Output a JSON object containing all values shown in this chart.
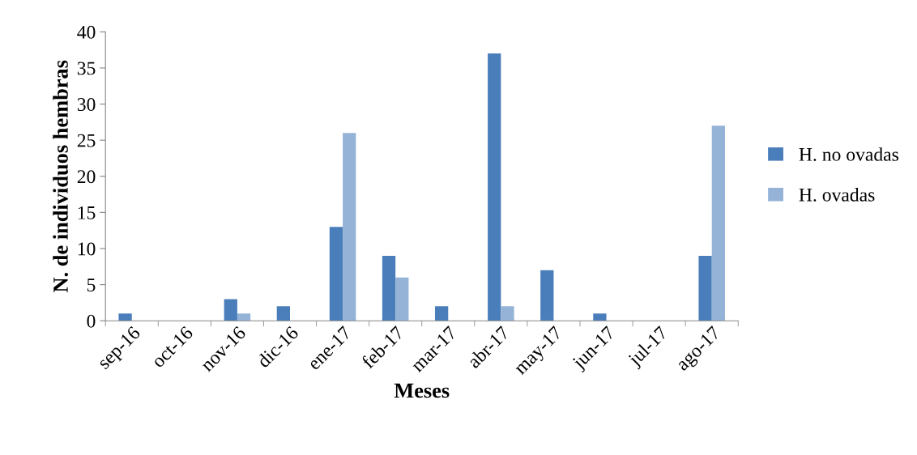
{
  "chart_data": {
    "type": "bar",
    "xlabel": "Meses",
    "ylabel": "N. de individuos hembras",
    "categories": [
      "sep-16",
      "oct-16",
      "nov-16",
      "dic-16",
      "ene-17",
      "feb-17",
      "mar-17",
      "abr-17",
      "may-17",
      "jun-17",
      "jul-17",
      "ago-17"
    ],
    "series": [
      {
        "name": "H. no ovadas",
        "color": "#4a7ebb",
        "values": [
          1,
          0,
          3,
          2,
          13,
          9,
          2,
          37,
          7,
          1,
          0,
          9
        ]
      },
      {
        "name": "H. ovadas",
        "color": "#95b3d7",
        "values": [
          0,
          0,
          1,
          0,
          26,
          6,
          0,
          2,
          0,
          0,
          0,
          27
        ]
      }
    ],
    "ylim": [
      0,
      40
    ],
    "yticks": [
      0,
      5,
      10,
      15,
      20,
      25,
      30,
      35,
      40
    ],
    "grid": false,
    "legend": "right"
  }
}
